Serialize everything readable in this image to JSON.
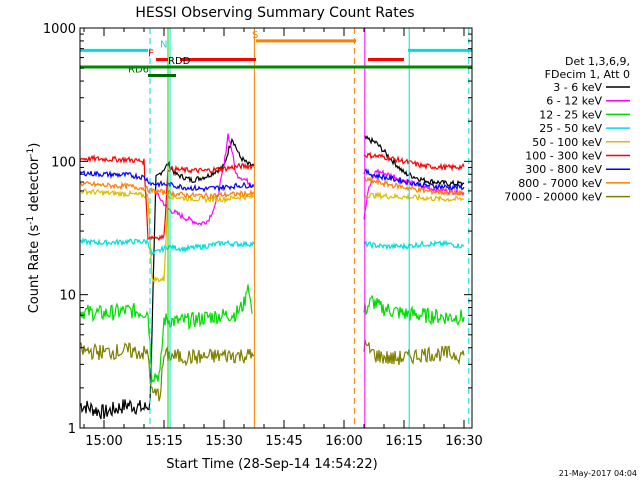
{
  "chart_data": {
    "type": "line",
    "title": "HESSI Observing Summary Count Rates",
    "xlabel": "Start Time (28-Sep-14 14:54:22)",
    "ylabel": "Count Rate (s-1 detector-1)",
    "ylabel_parts": {
      "base": "Count Rate (s",
      "sup1": "-1",
      "mid": " detector",
      "sup2": "-1",
      "end": ")"
    },
    "footer": "21-May-2017 04:04",
    "x_unit": "minutes of day (UT)",
    "xlim": [
      894,
      992
    ],
    "y_scale": "log",
    "ylim": [
      1,
      1000
    ],
    "x_ticks": [
      {
        "value": 900,
        "label": "15:00"
      },
      {
        "value": 915,
        "label": "15:15"
      },
      {
        "value": 930,
        "label": "15:30"
      },
      {
        "value": 945,
        "label": "15:45"
      },
      {
        "value": 960,
        "label": "16:00"
      },
      {
        "value": 975,
        "label": "16:15"
      },
      {
        "value": 990,
        "label": "16:30"
      }
    ],
    "y_ticks": [
      {
        "value": 1,
        "label": "1"
      },
      {
        "value": 10,
        "label": "10"
      },
      {
        "value": 100,
        "label": "100"
      },
      {
        "value": 1000,
        "label": "1000"
      }
    ],
    "legend_header": [
      "Det 1,3,6,9,",
      "FDecim 1, Att 0"
    ],
    "series": [
      {
        "name": "3 - 6 keV",
        "color": "#000000",
        "segments": [
          [
            [
              894,
              1.5
            ],
            [
              900,
              1.3
            ],
            [
              906,
              1.5
            ],
            [
              910,
              1.4
            ],
            [
              911.5,
              1.5
            ],
            [
              913,
              75
            ],
            [
              916,
              95
            ],
            [
              918,
              80
            ],
            [
              922,
              72
            ],
            [
              926,
              78
            ],
            [
              930,
              92
            ],
            [
              932,
              150
            ],
            [
              934,
              108
            ],
            [
              936,
              95
            ],
            [
              937.5,
              93
            ]
          ],
          [
            [
              965,
              150
            ],
            [
              968,
              138
            ],
            [
              971,
              110
            ],
            [
              975,
              82
            ],
            [
              980,
              72
            ],
            [
              986,
              68
            ],
            [
              990,
              68
            ]
          ]
        ]
      },
      {
        "name": "6 - 12 keV",
        "color": "#ff00ff",
        "segments": [
          [
            [
              913,
              58
            ],
            [
              916,
              44
            ],
            [
              920,
              38
            ],
            [
              924,
              34
            ],
            [
              926,
              36
            ],
            [
              928,
              48
            ],
            [
              930,
              92
            ],
            [
              931,
              160
            ],
            [
              932,
              120
            ],
            [
              933,
              80
            ],
            [
              935,
              74
            ],
            [
              937.5,
              65
            ]
          ],
          [
            [
              965,
              38
            ],
            [
              966,
              60
            ],
            [
              968,
              85
            ],
            [
              972,
              78
            ],
            [
              976,
              70
            ],
            [
              980,
              64
            ],
            [
              986,
              60
            ],
            [
              990,
              58
            ]
          ]
        ]
      },
      {
        "name": "12 - 25 keV",
        "color": "#00dd00",
        "segments": [
          [
            [
              894,
              7.5
            ],
            [
              900,
              7.2
            ],
            [
              906,
              7.6
            ],
            [
              911,
              7.4
            ],
            [
              912,
              2.5
            ],
            [
              914,
              2.5
            ],
            [
              915,
              6.5
            ],
            [
              918,
              6.3
            ],
            [
              922,
              6.4
            ],
            [
              926,
              6.8
            ],
            [
              930,
              7.0
            ],
            [
              933,
              7.2
            ],
            [
              935,
              8.5
            ],
            [
              936,
              12
            ],
            [
              937,
              7.2
            ]
          ],
          [
            [
              965,
              7.5
            ],
            [
              967,
              9
            ],
            [
              969,
              8
            ],
            [
              975,
              7.2
            ],
            [
              980,
              7.0
            ],
            [
              986,
              6.8
            ],
            [
              990,
              6.8
            ]
          ]
        ]
      },
      {
        "name": "25 - 50 keV",
        "color": "#00dddd",
        "segments": [
          [
            [
              894,
              25
            ],
            [
              900,
              24.5
            ],
            [
              906,
              25
            ],
            [
              911,
              25
            ],
            [
              912,
              20
            ],
            [
              916,
              23
            ],
            [
              920,
              22
            ],
            [
              925,
              23
            ],
            [
              930,
              24.5
            ],
            [
              933,
              24
            ],
            [
              937.5,
              24
            ]
          ],
          [
            [
              965,
              24
            ],
            [
              970,
              23
            ],
            [
              975,
              23
            ],
            [
              980,
              24
            ],
            [
              986,
              24
            ],
            [
              990,
              23
            ]
          ]
        ]
      },
      {
        "name": "50 - 100 keV",
        "color": "#ddbb00",
        "segments": [
          [
            [
              894,
              60
            ],
            [
              900,
              58
            ],
            [
              906,
              57
            ],
            [
              911,
              55
            ],
            [
              912,
              13
            ],
            [
              915,
              13
            ],
            [
              916,
              55
            ],
            [
              920,
              53
            ],
            [
              925,
              52
            ],
            [
              930,
              52
            ],
            [
              934,
              54
            ],
            [
              937.5,
              54
            ]
          ],
          [
            [
              965,
              56
            ],
            [
              970,
              55
            ],
            [
              975,
              54
            ],
            [
              980,
              53
            ],
            [
              986,
              52
            ],
            [
              990,
              52
            ]
          ]
        ]
      },
      {
        "name": "100 - 300 keV",
        "color": "#ff0000",
        "segments": [
          [
            [
              894,
              105
            ],
            [
              900,
              104
            ],
            [
              906,
              103
            ],
            [
              910,
              100
            ],
            [
              911,
              27
            ],
            [
              915,
              27
            ],
            [
              916,
              88
            ],
            [
              920,
              86
            ],
            [
              925,
              85
            ],
            [
              930,
              88
            ],
            [
              934,
              92
            ],
            [
              937.5,
              92
            ]
          ],
          [
            [
              965,
              112
            ],
            [
              970,
              108
            ],
            [
              975,
              100
            ],
            [
              980,
              92
            ],
            [
              986,
              90
            ],
            [
              990,
              91
            ]
          ]
        ]
      },
      {
        "name": "300 - 800 keV",
        "color": "#0000ff",
        "segments": [
          [
            [
              894,
              82
            ],
            [
              900,
              80
            ],
            [
              906,
              79
            ],
            [
              910,
              76
            ],
            [
              912,
              68
            ],
            [
              916,
              67
            ],
            [
              920,
              64
            ],
            [
              925,
              62
            ],
            [
              930,
              64
            ],
            [
              934,
              66
            ],
            [
              937.5,
              66
            ]
          ],
          [
            [
              965,
              84
            ],
            [
              968,
              78
            ],
            [
              972,
              74
            ],
            [
              976,
              70
            ],
            [
              980,
              66
            ],
            [
              986,
              64
            ],
            [
              990,
              64
            ]
          ]
        ]
      },
      {
        "name": "800 - 7000 keV",
        "color": "#ff7f00",
        "segments": [
          [
            [
              894,
              68
            ],
            [
              900,
              66
            ],
            [
              906,
              65
            ],
            [
              910,
              63
            ],
            [
              912,
              60
            ],
            [
              916,
              58
            ],
            [
              920,
              56
            ],
            [
              925,
              55
            ],
            [
              930,
              56
            ],
            [
              934,
              57
            ],
            [
              937.5,
              57
            ]
          ],
          [
            [
              965,
              73
            ],
            [
              970,
              68
            ],
            [
              975,
              64
            ],
            [
              980,
              60
            ],
            [
              986,
              58
            ],
            [
              990,
              58
            ]
          ]
        ]
      },
      {
        "name": "7000 - 20000 keV",
        "color": "#808000",
        "segments": [
          [
            [
              894,
              3.8
            ],
            [
              900,
              3.7
            ],
            [
              906,
              3.8
            ],
            [
              911,
              3.6
            ],
            [
              912,
              1.8
            ],
            [
              914,
              1.8
            ],
            [
              915,
              3.5
            ],
            [
              920,
              3.4
            ],
            [
              925,
              3.4
            ],
            [
              930,
              3.5
            ],
            [
              937.5,
              3.5
            ]
          ],
          [
            [
              965,
              4.2
            ],
            [
              968,
              3.5
            ],
            [
              972,
              3.3
            ],
            [
              976,
              3.4
            ],
            [
              980,
              3.6
            ],
            [
              986,
              3.6
            ],
            [
              990,
              3.5
            ]
          ]
        ]
      }
    ],
    "flag_bars": [
      {
        "label": "S",
        "color": "#ff7f00",
        "y": 800,
        "x": [
          938,
          963
        ],
        "label_at": 937
      },
      {
        "label": "N",
        "color": "#00dddd",
        "y": 680,
        "x": [
          894,
          911
        ],
        "label_at": 914,
        "second": [
          976,
          992
        ]
      },
      {
        "label": "F",
        "color": "#ff0000",
        "y": 580,
        "x": [
          913,
          916
        ],
        "label_at": 911,
        "extra": [
          [
            919,
            938
          ],
          [
            966,
            975
          ]
        ]
      },
      {
        "label": "RDD",
        "color": "#000000",
        "y": 510,
        "x": [
          894,
          992
        ],
        "label_at": 916
      },
      {
        "label": "RD6",
        "color": "#006600",
        "y": 440,
        "x": [
          911,
          918
        ],
        "label_at": 906
      },
      {
        "label": "",
        "color": "#008800",
        "y": 510,
        "x": [
          894,
          992
        ]
      }
    ],
    "vertical_markers": [
      {
        "x": 894,
        "color": "#00dddd",
        "style": "solid"
      },
      {
        "x": 911.5,
        "color": "#00dddd",
        "style": "dashed"
      },
      {
        "x": 916.5,
        "color": "#00dddd",
        "style": "solid"
      },
      {
        "x": 937.6,
        "color": "#ff7f00",
        "style": "solid"
      },
      {
        "x": 962.6,
        "color": "#ff7f00",
        "style": "dashed"
      },
      {
        "x": 965.2,
        "color": "#ff00ff",
        "style": "solid"
      },
      {
        "x": 976.3,
        "color": "#00dddd",
        "style": "solid"
      },
      {
        "x": 991.2,
        "color": "#00dddd",
        "style": "dashed"
      },
      {
        "x": 916,
        "color": "#00dd00",
        "style": "solid"
      }
    ]
  }
}
